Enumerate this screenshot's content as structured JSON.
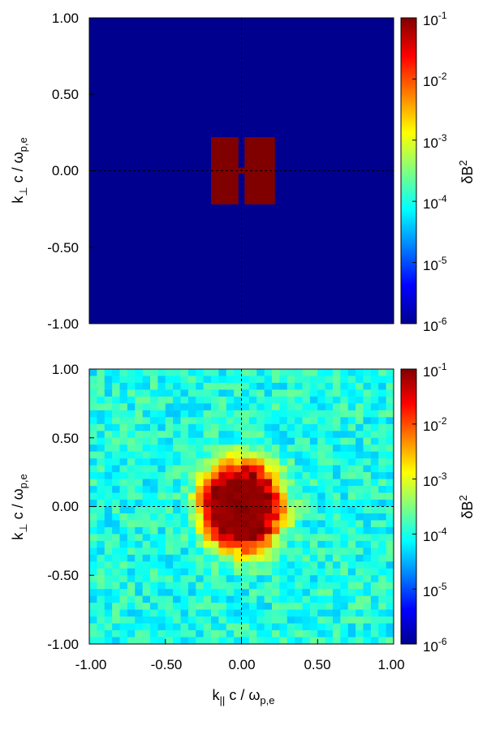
{
  "chart_data": [
    {
      "type": "heatmap",
      "title": "",
      "xlabel": "",
      "ylabel": "k⊥ c / ωp,e",
      "ylabel_parts": {
        "main": "k",
        "sub": "⊥",
        "rest": " c / ω",
        "rest_sub": "p,e"
      },
      "xlim": [
        -1,
        1
      ],
      "ylim": [
        -1,
        1
      ],
      "x_tick_labels": [],
      "y_ticks": [
        1,
        0.5,
        0,
        -0.5,
        -1
      ],
      "y_tick_labels": [
        "1.00",
        "0.50",
        "0.00",
        "-0.50",
        "-1.00"
      ],
      "colorbar": {
        "label": "δB²",
        "label_parts": {
          "base": "δB",
          "sup": "2"
        },
        "scale": "log",
        "range": [
          1e-06,
          0.1
        ],
        "tick_labels": [
          {
            "base": "10",
            "exp": "-1"
          },
          {
            "base": "10",
            "exp": "-2"
          },
          {
            "base": "10",
            "exp": "-3"
          },
          {
            "base": "10",
            "exp": "-4"
          },
          {
            "base": "10",
            "exp": "-5"
          },
          {
            "base": "10",
            "exp": "-6"
          }
        ]
      },
      "background_value": 1e-06,
      "regions": [
        {
          "x": [
            -0.2,
            -0.02
          ],
          "y": [
            -0.22,
            0.22
          ],
          "value": 0.1
        },
        {
          "x": [
            0.02,
            0.22
          ],
          "y": [
            -0.22,
            0.22
          ],
          "value": 0.1
        },
        {
          "x": [
            -0.02,
            0.02
          ],
          "y": [
            -0.02,
            0.02
          ],
          "value": 0.1
        }
      ],
      "grid_lines": "dashed at x=0 and y=0"
    },
    {
      "type": "heatmap",
      "title": "",
      "xlabel": "k|| c / ωp,e",
      "xlabel_parts": {
        "main": "k",
        "sub": "||",
        "rest": " c / ω",
        "rest_sub": "p,e"
      },
      "ylabel": "k⊥ c / ωp,e",
      "ylabel_parts": {
        "main": "k",
        "sub": "⊥",
        "rest": " c / ω",
        "rest_sub": "p,e"
      },
      "xlim": [
        -1,
        1
      ],
      "ylim": [
        -1,
        1
      ],
      "x_ticks": [
        -1,
        -0.5,
        0,
        0.5,
        1
      ],
      "x_tick_labels": [
        "-1.00",
        "-0.50",
        "0.00",
        "0.50",
        "1.00"
      ],
      "y_ticks": [
        1,
        0.5,
        0,
        -0.5,
        -1
      ],
      "y_tick_labels": [
        "1.00",
        "0.50",
        "0.00",
        "-0.50",
        "-1.00"
      ],
      "colorbar": {
        "label": "δB²",
        "label_parts": {
          "base": "δB",
          "sup": "2"
        },
        "scale": "log",
        "range": [
          1e-06,
          0.1
        ],
        "tick_labels": [
          {
            "base": "10",
            "exp": "-1"
          },
          {
            "base": "10",
            "exp": "-2"
          },
          {
            "base": "10",
            "exp": "-3"
          },
          {
            "base": "10",
            "exp": "-4"
          },
          {
            "base": "10",
            "exp": "-5"
          },
          {
            "base": "10",
            "exp": "-6"
          }
        ]
      },
      "grid_size": 40,
      "spectrum": {
        "peak_value": 0.1,
        "peak_half_width_x": 0.18,
        "peak_half_width_y": 0.22,
        "background_value": 0.0001,
        "noise_decades": 0.4,
        "noise_seed": 7
      },
      "grid_lines": "dashed at x=0 and y=0"
    }
  ]
}
